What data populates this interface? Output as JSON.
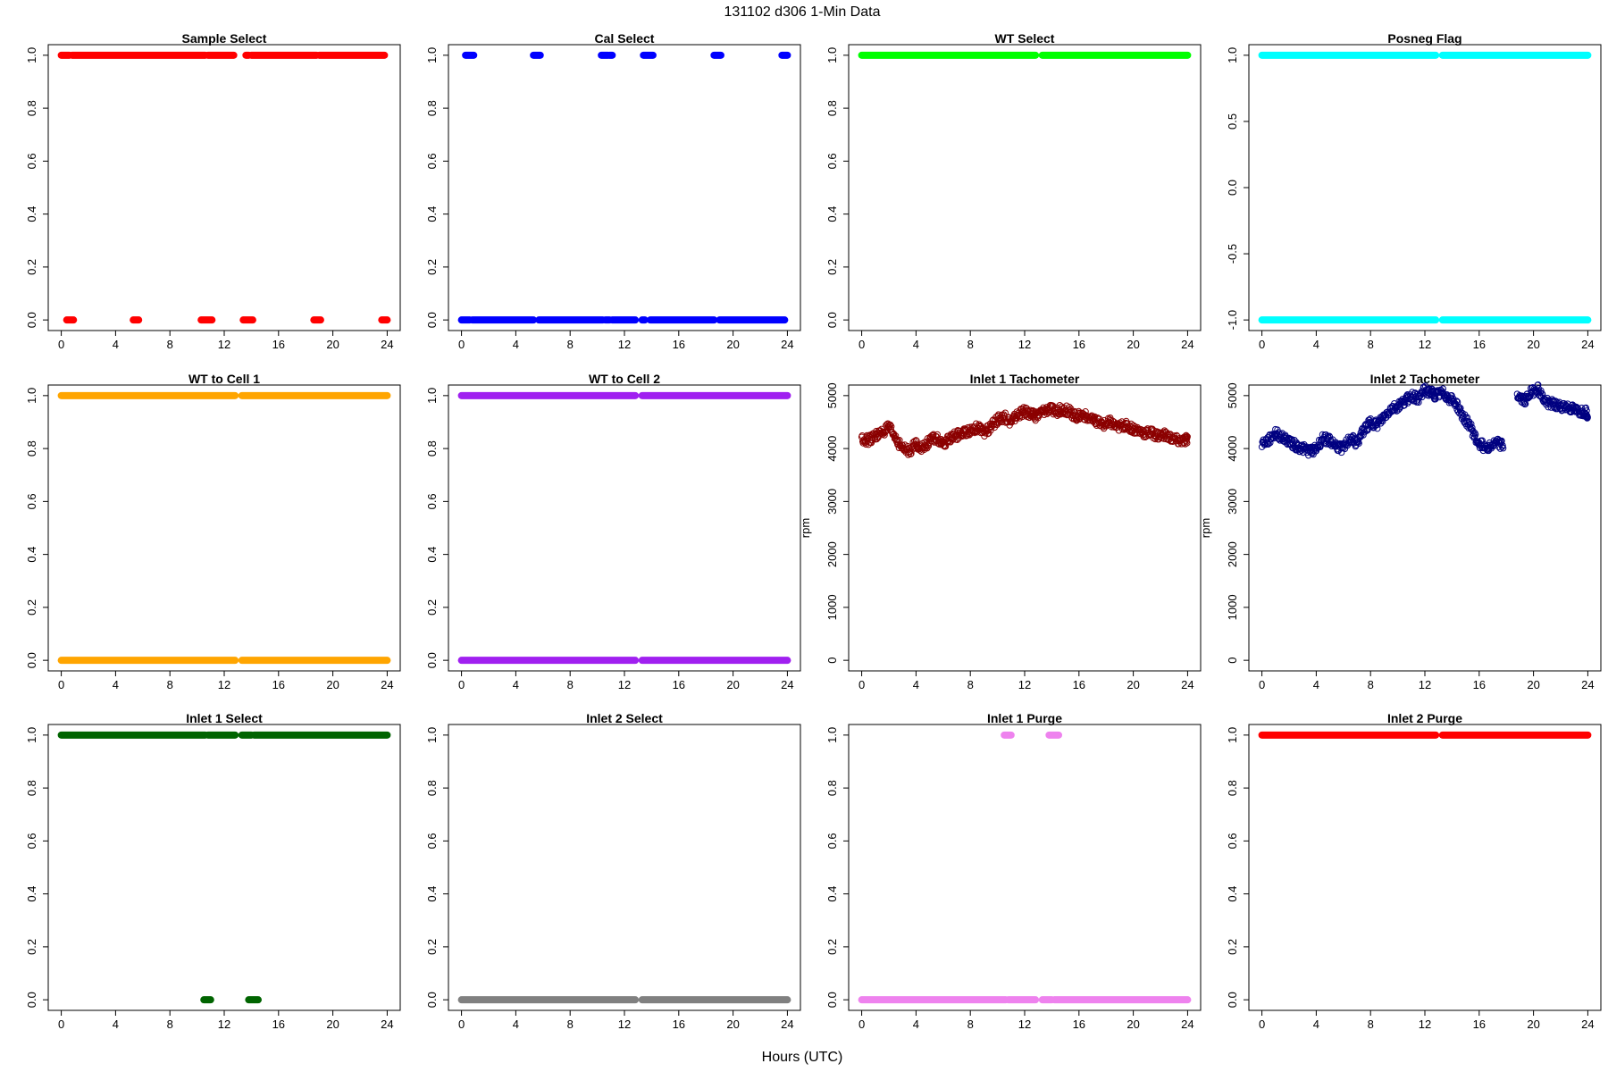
{
  "figure": {
    "title": "131102   d306   1-Min Data",
    "xlabel": "Hours (UTC)"
  },
  "chart_data": [
    {
      "type": "scatter",
      "title": "Sample Select",
      "ylabel": "",
      "xlim": [
        0,
        24
      ],
      "ylim": [
        0,
        1
      ],
      "xticks": [
        0,
        4,
        8,
        12,
        16,
        20,
        24
      ],
      "yticks": [
        "0.0",
        "0.2",
        "0.4",
        "0.6",
        "0.8",
        "1.0"
      ],
      "color": "#ff0000",
      "grid": false,
      "marker": "open-circle",
      "series": [
        {
          "y": 1,
          "segments": [
            [
              0,
              0.6
            ],
            [
              0.8,
              10.6
            ],
            [
              10.8,
              12.7
            ],
            [
              13.6,
              13.8
            ],
            [
              14.0,
              18.8
            ],
            [
              19.0,
              23.8
            ]
          ]
        },
        {
          "y": 0,
          "segments": [
            [
              0.4,
              0.9
            ],
            [
              5.3,
              5.7
            ],
            [
              10.3,
              11.1
            ],
            [
              13.4,
              14.1
            ],
            [
              18.6,
              19.1
            ],
            [
              23.6,
              24.0
            ]
          ]
        }
      ]
    },
    {
      "type": "scatter",
      "title": "Cal Select",
      "ylabel": "",
      "xlim": [
        0,
        24
      ],
      "ylim": [
        0,
        1
      ],
      "xticks": [
        0,
        4,
        8,
        12,
        16,
        20,
        24
      ],
      "yticks": [
        "0.0",
        "0.2",
        "0.4",
        "0.6",
        "0.8",
        "1.0"
      ],
      "color": "#0000ff",
      "grid": false,
      "marker": "open-circle",
      "series": [
        {
          "y": 1,
          "segments": [
            [
              0.3,
              0.9
            ],
            [
              5.3,
              5.8
            ],
            [
              10.3,
              10.8
            ],
            [
              10.9,
              11.1
            ],
            [
              13.4,
              14.1
            ],
            [
              18.6,
              19.1
            ],
            [
              23.6,
              24.0
            ]
          ]
        },
        {
          "y": 0,
          "segments": [
            [
              0,
              0.6
            ],
            [
              0.8,
              5.3
            ],
            [
              5.7,
              10.4
            ],
            [
              10.6,
              10.9
            ],
            [
              11.1,
              12.8
            ],
            [
              13.3,
              13.5
            ],
            [
              13.9,
              18.6
            ],
            [
              19.0,
              23.8
            ]
          ]
        }
      ]
    },
    {
      "type": "scatter",
      "title": "WT Select",
      "ylabel": "",
      "xlim": [
        0,
        24
      ],
      "ylim": [
        0,
        1
      ],
      "xticks": [
        0,
        4,
        8,
        12,
        16,
        20,
        24
      ],
      "yticks": [
        "0.0",
        "0.2",
        "0.4",
        "0.6",
        "0.8",
        "1.0"
      ],
      "color": "#00ff00",
      "grid": false,
      "marker": "open-circle",
      "series": [
        {
          "y": 1,
          "segments": [
            [
              0,
              12.8
            ],
            [
              13.3,
              24.0
            ]
          ]
        }
      ]
    },
    {
      "type": "scatter",
      "title": "Posneg Flag",
      "ylabel": "",
      "xlim": [
        0,
        24
      ],
      "ylim": [
        -1,
        1
      ],
      "xticks": [
        0,
        4,
        8,
        12,
        16,
        20,
        24
      ],
      "yticks": [
        "-1.0",
        "-0.5",
        "0.0",
        "0.5",
        "1.0"
      ],
      "color": "#00ffff",
      "grid": false,
      "marker": "open-circle",
      "series": [
        {
          "y": 1,
          "segments": [
            [
              0,
              12.8
            ],
            [
              13.3,
              24.0
            ]
          ]
        },
        {
          "y": -1,
          "segments": [
            [
              0,
              12.8
            ],
            [
              13.3,
              24.0
            ]
          ]
        }
      ]
    },
    {
      "type": "scatter",
      "title": "WT to Cell 1",
      "ylabel": "",
      "xlim": [
        0,
        24
      ],
      "ylim": [
        0,
        1
      ],
      "xticks": [
        0,
        4,
        8,
        12,
        16,
        20,
        24
      ],
      "yticks": [
        "0.0",
        "0.2",
        "0.4",
        "0.6",
        "0.8",
        "1.0"
      ],
      "color": "#ffa500",
      "grid": false,
      "marker": "open-circle",
      "series": [
        {
          "y": 1,
          "segments": [
            [
              0,
              12.8
            ],
            [
              13.3,
              24.0
            ]
          ]
        },
        {
          "y": 0,
          "segments": [
            [
              0,
              12.8
            ],
            [
              13.3,
              24.0
            ]
          ]
        }
      ]
    },
    {
      "type": "scatter",
      "title": "WT to Cell 2",
      "ylabel": "",
      "xlim": [
        0,
        24
      ],
      "ylim": [
        0,
        1
      ],
      "xticks": [
        0,
        4,
        8,
        12,
        16,
        20,
        24
      ],
      "yticks": [
        "0.0",
        "0.2",
        "0.4",
        "0.6",
        "0.8",
        "1.0"
      ],
      "color": "#a020f0",
      "grid": false,
      "marker": "open-circle",
      "series": [
        {
          "y": 1,
          "segments": [
            [
              0,
              12.8
            ],
            [
              13.3,
              24.0
            ]
          ]
        },
        {
          "y": 0,
          "segments": [
            [
              0,
              12.8
            ],
            [
              13.3,
              24.0
            ]
          ]
        }
      ]
    },
    {
      "type": "scatter",
      "title": "Inlet 1 Tachometer",
      "ylabel": "rpm",
      "xlim": [
        0,
        24
      ],
      "ylim": [
        0,
        5000
      ],
      "xticks": [
        0,
        4,
        8,
        12,
        16,
        20,
        24
      ],
      "yticks": [
        "0",
        "1000",
        "2000",
        "3000",
        "4000",
        "5000"
      ],
      "color": "#8b0000",
      "grid": false,
      "marker": "open-circle",
      "series": [
        {
          "name": "",
          "x": [
            0,
            0.5,
            1,
            1.5,
            2,
            2.5,
            3,
            3.5,
            4,
            4.5,
            5,
            5.5,
            6,
            6.5,
            7,
            7.5,
            8,
            8.5,
            9,
            9.5,
            10,
            10.5,
            11,
            11.5,
            12,
            12.5,
            12.8,
            13.3,
            13.8,
            14.3,
            14.8,
            15.3,
            15.8,
            16.3,
            16.8,
            17.3,
            17.8,
            18.3,
            18.8,
            19.3,
            19.8,
            20.3,
            20.8,
            21.3,
            21.8,
            22.3,
            22.8,
            23.3,
            23.8,
            24.0
          ],
          "y": [
            4200,
            4150,
            4250,
            4300,
            4400,
            4200,
            4000,
            3950,
            4100,
            4000,
            4150,
            4200,
            4050,
            4200,
            4250,
            4300,
            4350,
            4400,
            4300,
            4400,
            4550,
            4600,
            4500,
            4650,
            4700,
            4650,
            4600,
            4700,
            4750,
            4700,
            4750,
            4700,
            4600,
            4650,
            4550,
            4500,
            4450,
            4500,
            4400,
            4450,
            4400,
            4350,
            4300,
            4300,
            4250,
            4250,
            4200,
            4150,
            4150,
            4200
          ]
        }
      ]
    },
    {
      "type": "scatter",
      "title": "Inlet 2 Tachometer",
      "ylabel": "rpm",
      "xlim": [
        0,
        24
      ],
      "ylim": [
        0,
        5000
      ],
      "xticks": [
        0,
        4,
        8,
        12,
        16,
        20,
        24
      ],
      "yticks": [
        "0",
        "1000",
        "2000",
        "3000",
        "4000",
        "5000"
      ],
      "color": "#000080",
      "grid": false,
      "marker": "open-circle",
      "series": [
        {
          "name": "",
          "x": [
            0,
            0.5,
            1,
            1.5,
            2,
            2.5,
            3,
            3.5,
            4,
            4.5,
            5,
            5.5,
            6,
            6.5,
            7,
            7.5,
            8,
            8.5,
            9,
            9.5,
            10,
            10.5,
            11,
            11.5,
            12,
            12.5,
            12.8,
            13.3,
            13.8,
            14.3,
            14.8,
            15.3,
            15.8,
            16.3,
            16.8,
            17.3,
            17.8,
            18.3,
            18.8,
            19.3,
            19.8,
            20.3,
            20.8,
            21.3,
            21.8,
            22.3,
            22.8,
            23.3,
            23.8,
            24.0
          ],
          "y": [
            4100,
            4150,
            4300,
            4200,
            4150,
            4050,
            4000,
            3950,
            4000,
            4200,
            4150,
            4050,
            4000,
            4200,
            4100,
            4350,
            4500,
            4450,
            4600,
            4750,
            4800,
            4900,
            5000,
            4950,
            5100,
            5050,
            5000,
            5050,
            4950,
            4850,
            4600,
            4450,
            4150,
            4050,
            4050,
            4100,
            4050,
            null,
            5000,
            4900,
            5050,
            5150,
            4900,
            4850,
            4800,
            4800,
            4750,
            4700,
            4700,
            4650
          ]
        }
      ]
    },
    {
      "type": "scatter",
      "title": "Inlet 1 Select",
      "ylabel": "",
      "xlim": [
        0,
        24
      ],
      "ylim": [
        0,
        1
      ],
      "xticks": [
        0,
        4,
        8,
        12,
        16,
        20,
        24
      ],
      "yticks": [
        "0.0",
        "0.2",
        "0.4",
        "0.6",
        "0.8",
        "1.0"
      ],
      "color": "#006400",
      "grid": false,
      "marker": "open-circle",
      "series": [
        {
          "y": 1,
          "segments": [
            [
              0,
              10.6
            ],
            [
              10.8,
              12.8
            ],
            [
              13.3,
              14.0
            ],
            [
              14.2,
              24.0
            ]
          ]
        },
        {
          "y": 0,
          "segments": [
            [
              10.5,
              11.0
            ],
            [
              13.8,
              14.5
            ]
          ]
        }
      ]
    },
    {
      "type": "scatter",
      "title": "Inlet 2 Select",
      "ylabel": "",
      "xlim": [
        0,
        24
      ],
      "ylim": [
        0,
        1
      ],
      "xticks": [
        0,
        4,
        8,
        12,
        16,
        20,
        24
      ],
      "yticks": [
        "0.0",
        "0.2",
        "0.4",
        "0.6",
        "0.8",
        "1.0"
      ],
      "color": "#808080",
      "grid": false,
      "marker": "open-circle",
      "series": [
        {
          "y": 0,
          "segments": [
            [
              0,
              12.8
            ],
            [
              13.3,
              24.0
            ]
          ]
        }
      ]
    },
    {
      "type": "scatter",
      "title": "Inlet 1 Purge",
      "ylabel": "",
      "xlim": [
        0,
        24
      ],
      "ylim": [
        0,
        1
      ],
      "xticks": [
        0,
        4,
        8,
        12,
        16,
        20,
        24
      ],
      "yticks": [
        "0.0",
        "0.2",
        "0.4",
        "0.6",
        "0.8",
        "1.0"
      ],
      "color": "#ee82ee",
      "grid": false,
      "marker": "open-circle",
      "series": [
        {
          "y": 1,
          "segments": [
            [
              10.5,
              11.0
            ],
            [
              13.8,
              14.5
            ]
          ]
        },
        {
          "y": 0,
          "segments": [
            [
              0,
              10.6
            ],
            [
              10.8,
              12.8
            ],
            [
              13.3,
              14.0
            ],
            [
              14.2,
              24.0
            ]
          ]
        }
      ]
    },
    {
      "type": "scatter",
      "title": "Inlet 2 Purge",
      "ylabel": "",
      "xlim": [
        0,
        24
      ],
      "ylim": [
        0,
        1
      ],
      "xticks": [
        0,
        4,
        8,
        12,
        16,
        20,
        24
      ],
      "yticks": [
        "0.0",
        "0.2",
        "0.4",
        "0.6",
        "0.8",
        "1.0"
      ],
      "color": "#ff0000",
      "grid": false,
      "marker": "open-circle",
      "series": [
        {
          "y": 1,
          "segments": [
            [
              0,
              12.8
            ],
            [
              13.3,
              24.0
            ]
          ]
        }
      ]
    }
  ]
}
